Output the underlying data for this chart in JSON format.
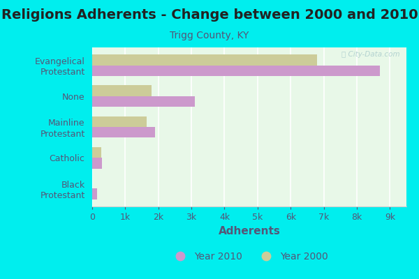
{
  "title": "Religions Adherents - Change between 2000 and 2010",
  "subtitle": "Trigg County, KY",
  "xlabel": "Adherents",
  "categories": [
    "Evangelical\nProtestant",
    "None",
    "Mainline\nProtestant",
    "Catholic",
    "Black\nProtestant"
  ],
  "values_2010": [
    8700,
    3100,
    1900,
    300,
    150
  ],
  "values_2000": [
    6800,
    1800,
    1650,
    270,
    0
  ],
  "color_2010": "#cc99cc",
  "color_2000": "#cccc99",
  "background_outer": "#00eeee",
  "background_plot_color": "#e8f8e8",
  "bar_height": 0.35,
  "xlim": [
    0,
    9500
  ],
  "xticks": [
    0,
    1000,
    2000,
    3000,
    4000,
    5000,
    6000,
    7000,
    8000,
    9000
  ],
  "xticklabels": [
    "0",
    "1k",
    "2k",
    "3k",
    "4k",
    "5k",
    "6k",
    "7k",
    "8k",
    "9k"
  ],
  "title_fontsize": 14,
  "subtitle_fontsize": 10,
  "label_fontsize": 9,
  "tick_fontsize": 9,
  "legend_fontsize": 10,
  "watermark": "ⓘ City-Data.com",
  "axis_color": "#888888",
  "text_color": "#555577"
}
